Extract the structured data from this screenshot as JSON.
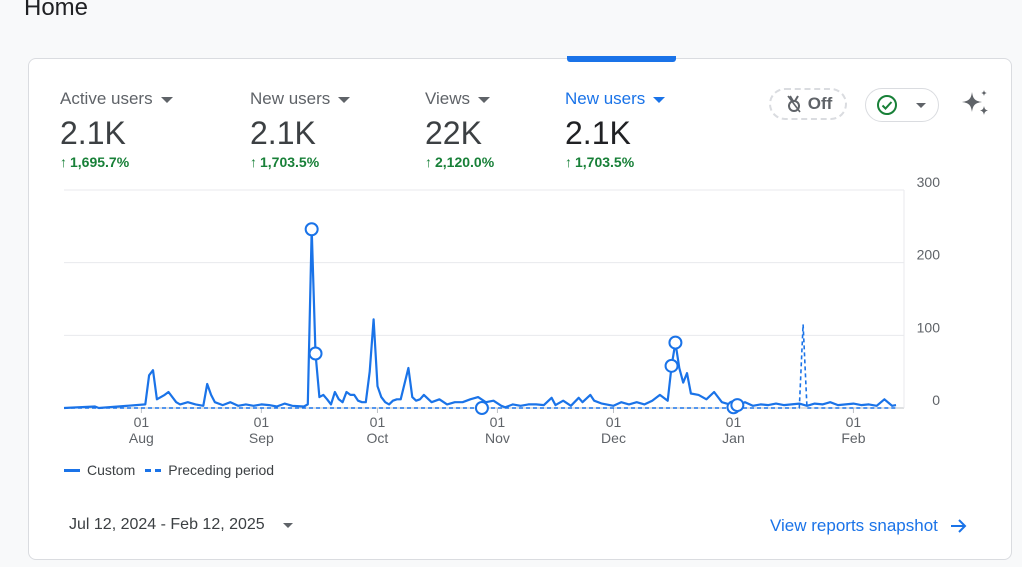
{
  "page": {
    "title": "Home"
  },
  "metrics": [
    {
      "label": "Active users",
      "value": "2.1K",
      "change": "1,695.7%"
    },
    {
      "label": "New users",
      "value": "2.1K",
      "change": "1,703.5%"
    },
    {
      "label": "Views",
      "value": "22K",
      "change": "2,120.0%"
    },
    {
      "label": "New users",
      "value": "2.1K",
      "change": "1,703.5%",
      "selected": true
    }
  ],
  "controls": {
    "off_badge": "Off",
    "check_icon": "check-circle-icon",
    "sparkle_icon": "sparkle-icon"
  },
  "legend": {
    "custom": "Custom",
    "preceding": "Preceding period"
  },
  "footer": {
    "date_range": "Jul 12, 2024 - Feb 12, 2025",
    "snapshot_link": "View reports snapshot"
  },
  "colors": {
    "accent": "#1a73e8",
    "positive": "#188038"
  },
  "chart_data": {
    "type": "line",
    "ylim": [
      0,
      300
    ],
    "y_ticks": [
      0,
      100,
      200,
      300
    ],
    "x_ticks": [
      {
        "date": "2024-08-01",
        "day": "01",
        "month": "Aug"
      },
      {
        "date": "2024-09-01",
        "day": "01",
        "month": "Sep"
      },
      {
        "date": "2024-10-01",
        "day": "01",
        "month": "Oct"
      },
      {
        "date": "2024-11-01",
        "day": "01",
        "month": "Nov"
      },
      {
        "date": "2024-12-01",
        "day": "01",
        "month": "Dec"
      },
      {
        "date": "2025-01-01",
        "day": "01",
        "month": "Jan"
      },
      {
        "date": "2025-02-01",
        "day": "01",
        "month": "Feb"
      }
    ],
    "x_range": [
      "2024-07-12",
      "2025-02-12"
    ],
    "series": [
      {
        "name": "Custom",
        "style": "solid",
        "points": [
          [
            "2024-07-12",
            0
          ],
          [
            "2024-07-20",
            2
          ],
          [
            "2024-07-21",
            0
          ],
          [
            "2024-08-02",
            5
          ],
          [
            "2024-08-03",
            45
          ],
          [
            "2024-08-04",
            52
          ],
          [
            "2024-08-05",
            12
          ],
          [
            "2024-08-07",
            18
          ],
          [
            "2024-08-08",
            22
          ],
          [
            "2024-08-10",
            8
          ],
          [
            "2024-08-11",
            5
          ],
          [
            "2024-08-13",
            8
          ],
          [
            "2024-08-15",
            5
          ],
          [
            "2024-08-17",
            3
          ],
          [
            "2024-08-18",
            33
          ],
          [
            "2024-08-19",
            18
          ],
          [
            "2024-08-20",
            8
          ],
          [
            "2024-08-22",
            4
          ],
          [
            "2024-08-24",
            8
          ],
          [
            "2024-08-26",
            3
          ],
          [
            "2024-08-28",
            5
          ],
          [
            "2024-08-30",
            3
          ],
          [
            "2024-09-01",
            5
          ],
          [
            "2024-09-03",
            4
          ],
          [
            "2024-09-05",
            2
          ],
          [
            "2024-09-07",
            6
          ],
          [
            "2024-09-09",
            3
          ],
          [
            "2024-09-12",
            2
          ],
          [
            "2024-09-13",
            5
          ],
          [
            "2024-09-14",
            246
          ],
          [
            "2024-09-15",
            75
          ],
          [
            "2024-09-16",
            15
          ],
          [
            "2024-09-17",
            18
          ],
          [
            "2024-09-18",
            12
          ],
          [
            "2024-09-19",
            5
          ],
          [
            "2024-09-20",
            22
          ],
          [
            "2024-09-21",
            12
          ],
          [
            "2024-09-22",
            8
          ],
          [
            "2024-09-23",
            22
          ],
          [
            "2024-09-24",
            18
          ],
          [
            "2024-09-25",
            18
          ],
          [
            "2024-09-26",
            10
          ],
          [
            "2024-09-27",
            8
          ],
          [
            "2024-09-28",
            8
          ],
          [
            "2024-09-29",
            50
          ],
          [
            "2024-09-30",
            122
          ],
          [
            "2024-10-01",
            30
          ],
          [
            "2024-10-02",
            15
          ],
          [
            "2024-10-03",
            8
          ],
          [
            "2024-10-04",
            5
          ],
          [
            "2024-10-05",
            10
          ],
          [
            "2024-10-06",
            12
          ],
          [
            "2024-10-07",
            12
          ],
          [
            "2024-10-09",
            55
          ],
          [
            "2024-10-10",
            15
          ],
          [
            "2024-10-11",
            10
          ],
          [
            "2024-10-12",
            12
          ],
          [
            "2024-10-13",
            18
          ],
          [
            "2024-10-15",
            8
          ],
          [
            "2024-10-17",
            12
          ],
          [
            "2024-10-19",
            5
          ],
          [
            "2024-10-21",
            8
          ],
          [
            "2024-10-23",
            8
          ],
          [
            "2024-10-25",
            12
          ],
          [
            "2024-10-27",
            15
          ],
          [
            "2024-10-29",
            8
          ],
          [
            "2024-10-31",
            10
          ],
          [
            "2024-11-02",
            3
          ],
          [
            "2024-11-03",
            1
          ],
          [
            "2024-11-05",
            5
          ],
          [
            "2024-11-07",
            3
          ],
          [
            "2024-11-09",
            5
          ],
          [
            "2024-11-11",
            5
          ],
          [
            "2024-11-13",
            4
          ],
          [
            "2024-11-15",
            14
          ],
          [
            "2024-11-16",
            4
          ],
          [
            "2024-11-18",
            10
          ],
          [
            "2024-11-20",
            3
          ],
          [
            "2024-11-22",
            14
          ],
          [
            "2024-11-23",
            8
          ],
          [
            "2024-11-25",
            18
          ],
          [
            "2024-11-26",
            10
          ],
          [
            "2024-11-28",
            6
          ],
          [
            "2024-12-01",
            3
          ],
          [
            "2024-12-03",
            8
          ],
          [
            "2024-12-05",
            5
          ],
          [
            "2024-12-07",
            8
          ],
          [
            "2024-12-09",
            5
          ],
          [
            "2024-12-11",
            10
          ],
          [
            "2024-12-13",
            18
          ],
          [
            "2024-12-15",
            10
          ],
          [
            "2024-12-16",
            58
          ],
          [
            "2024-12-17",
            90
          ],
          [
            "2024-12-18",
            55
          ],
          [
            "2024-12-19",
            35
          ],
          [
            "2024-12-20",
            48
          ],
          [
            "2024-12-21",
            20
          ],
          [
            "2024-12-23",
            18
          ],
          [
            "2024-12-25",
            12
          ],
          [
            "2024-12-27",
            22
          ],
          [
            "2024-12-29",
            8
          ],
          [
            "2024-12-31",
            5
          ],
          [
            "2025-01-01",
            1
          ],
          [
            "2025-01-02",
            4
          ],
          [
            "2025-01-04",
            8
          ],
          [
            "2025-01-06",
            3
          ],
          [
            "2025-01-08",
            5
          ],
          [
            "2025-01-10",
            4
          ],
          [
            "2025-01-12",
            6
          ],
          [
            "2025-01-14",
            4
          ],
          [
            "2025-01-16",
            5
          ],
          [
            "2025-01-18",
            6
          ],
          [
            "2025-01-20",
            3
          ],
          [
            "2025-01-22",
            6
          ],
          [
            "2025-01-24",
            5
          ],
          [
            "2025-01-26",
            8
          ],
          [
            "2025-01-28",
            4
          ],
          [
            "2025-01-30",
            5
          ],
          [
            "2025-02-01",
            6
          ],
          [
            "2025-02-03",
            4
          ],
          [
            "2025-02-05",
            5
          ],
          [
            "2025-02-07",
            3
          ],
          [
            "2025-02-09",
            12
          ],
          [
            "2025-02-11",
            3
          ],
          [
            "2025-02-12",
            4
          ]
        ]
      },
      {
        "name": "Preceding period",
        "style": "dashed",
        "points": [
          [
            "2024-07-12",
            0
          ],
          [
            "2025-01-18",
            0
          ],
          [
            "2025-01-19",
            115
          ],
          [
            "2025-01-20",
            0
          ],
          [
            "2025-02-12",
            0
          ]
        ]
      }
    ],
    "annotations": [
      "2024-09-14",
      "2024-09-15",
      "2024-10-28",
      "2024-12-16",
      "2024-12-17",
      "2025-01-01",
      "2025-01-02"
    ]
  }
}
